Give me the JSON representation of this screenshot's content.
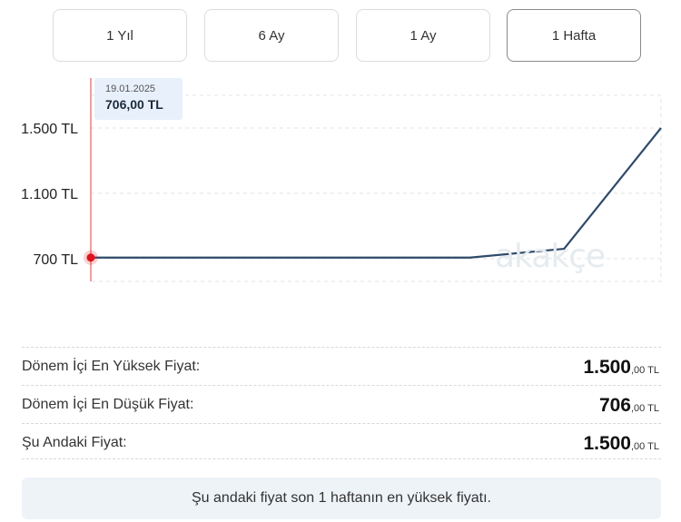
{
  "tabs": [
    {
      "label": "1 Yıl",
      "active": false
    },
    {
      "label": "6 Ay",
      "active": false
    },
    {
      "label": "1 Ay",
      "active": false
    },
    {
      "label": "1 Hafta",
      "active": true
    }
  ],
  "chart_data": {
    "type": "line",
    "y_ticks": [
      700,
      1100,
      1500
    ],
    "y_tick_labels": [
      "700 TL",
      "1.100 TL",
      "1.500 TL"
    ],
    "ylim": [
      560,
      1700
    ],
    "x": [
      "19.01.2025",
      "",
      "",
      "",
      "",
      "",
      ""
    ],
    "series": [
      {
        "values": [
          706,
          706,
          706,
          706,
          706,
          760,
          1500
        ],
        "color": "#2f4a6a"
      }
    ],
    "grid": true,
    "highlight": {
      "index": 0,
      "date": "19.01.2025",
      "value_label": "706,00 TL"
    }
  },
  "watermark": "akakçe",
  "stats": [
    {
      "label": "Dönem İçi En Yüksek Fiyat:",
      "int": "1.500",
      "dec": ",00 TL"
    },
    {
      "label": "Dönem İçi En Düşük Fiyat:",
      "int": "706",
      "dec": ",00 TL"
    },
    {
      "label": "Şu Andaki Fiyat:",
      "int": "1.500",
      "dec": ",00 TL"
    }
  ],
  "note": "Şu andaki fiyat son 1 haftanın en yüksek fiyatı.",
  "colors": {
    "line": "#2f4a6a",
    "marker": "#e0121b",
    "cursor": "#e88080",
    "grid": "#e3e3e3"
  }
}
